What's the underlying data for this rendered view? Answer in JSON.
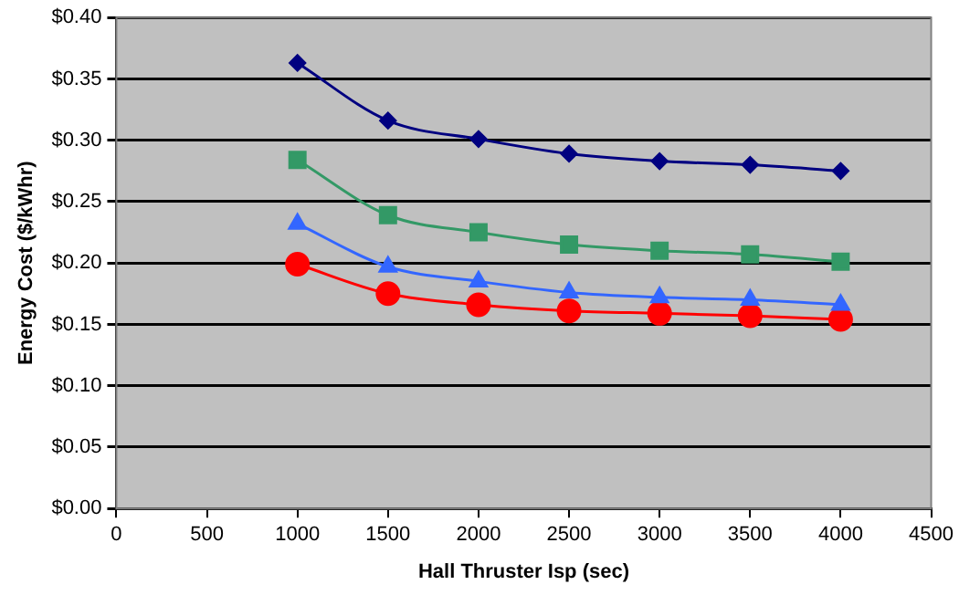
{
  "chart_data": {
    "type": "line",
    "xlabel": "Hall Thruster Isp (sec)",
    "ylabel": "Energy Cost ($/kWhr)",
    "x": [
      1000,
      1500,
      2000,
      2500,
      3000,
      3500,
      4000
    ],
    "series": [
      {
        "color": "#000080",
        "marker": "diamond",
        "values": [
          0.363,
          0.316,
          0.301,
          0.289,
          0.283,
          0.28,
          0.275
        ]
      },
      {
        "color": "#339966",
        "marker": "square",
        "values": [
          0.284,
          0.239,
          0.225,
          0.215,
          0.21,
          0.207,
          0.201
        ]
      },
      {
        "color": "#3366ff",
        "marker": "triangle",
        "values": [
          0.232,
          0.197,
          0.185,
          0.176,
          0.172,
          0.17,
          0.166
        ]
      },
      {
        "color": "#ff0000",
        "marker": "circle",
        "values": [
          0.199,
          0.175,
          0.166,
          0.161,
          0.159,
          0.157,
          0.154
        ]
      }
    ],
    "xlim": [
      0,
      4500
    ],
    "xticks": [
      0,
      500,
      1000,
      1500,
      2000,
      2500,
      3000,
      3500,
      4000,
      4500
    ],
    "ylim": [
      0,
      0.4
    ],
    "yticks": [
      {
        "value": 0,
        "label": "$0.00"
      },
      {
        "value": 0.05,
        "label": "$0.05"
      },
      {
        "value": 0.1,
        "label": "$0.10"
      },
      {
        "value": 0.15,
        "label": "$0.15"
      },
      {
        "value": 0.2,
        "label": "$0.20"
      },
      {
        "value": 0.25,
        "label": "$0.25"
      },
      {
        "value": 0.3,
        "label": "$0.30"
      },
      {
        "value": 0.35,
        "label": "$0.35"
      },
      {
        "value": 0.4,
        "label": "$0.40"
      }
    ],
    "grid": "y",
    "legend": false
  }
}
